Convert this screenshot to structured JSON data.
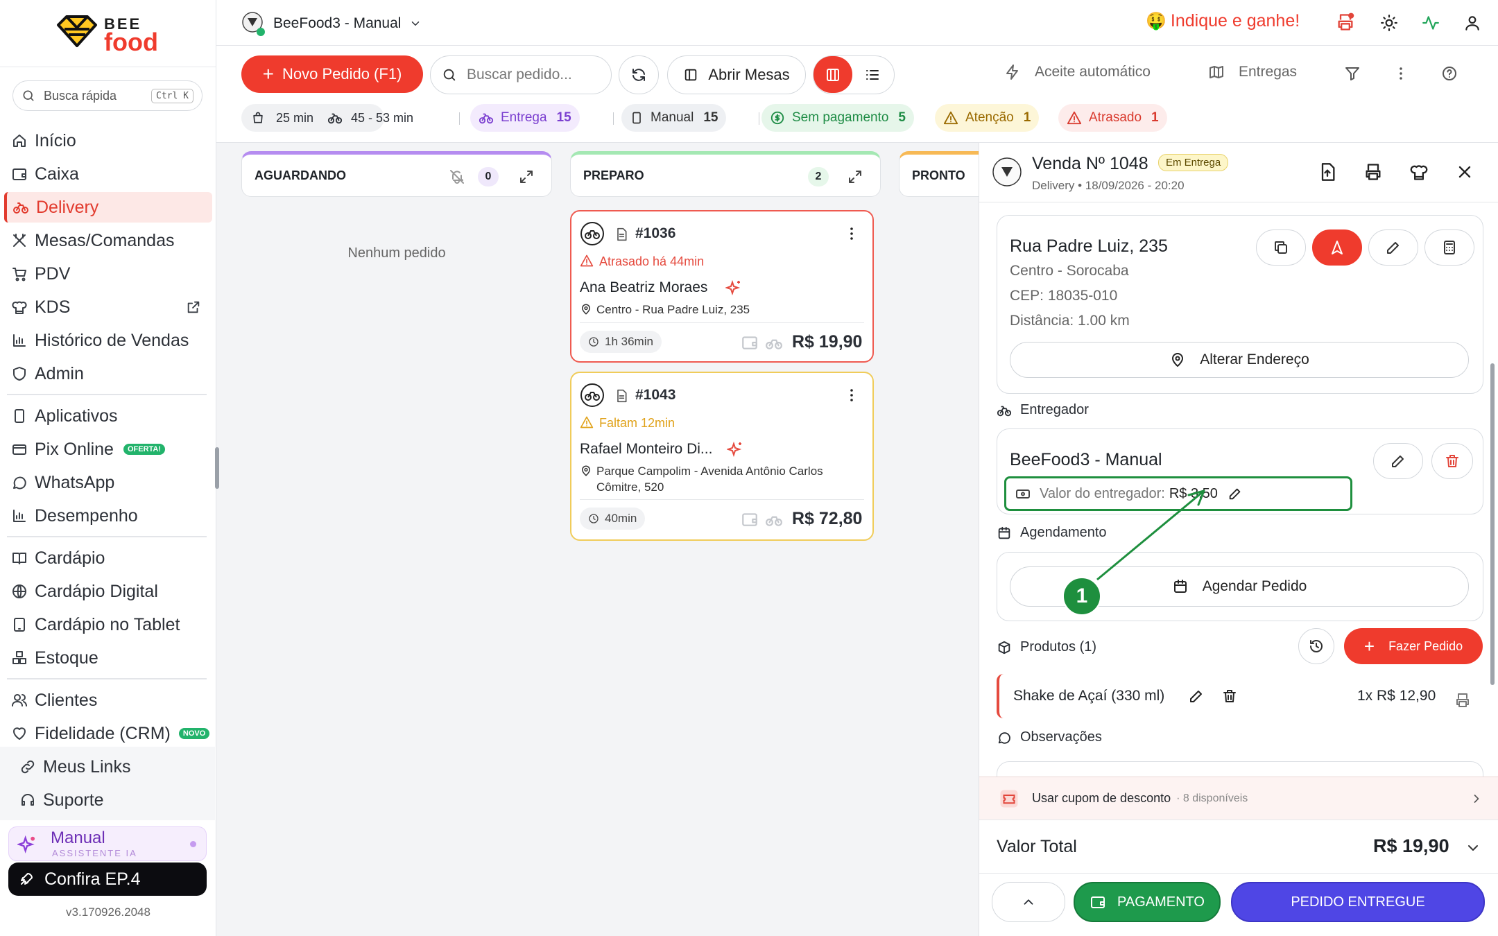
{
  "sidebar": {
    "logo_top": "BEE",
    "logo_bottom": "food",
    "search_placeholder": "Busca rápida",
    "search_shortcut": "Ctrl K",
    "items": [
      {
        "label": "Início",
        "icon": "home-icon"
      },
      {
        "label": "Caixa",
        "icon": "wallet-icon"
      },
      {
        "label": "Delivery",
        "icon": "bike-icon"
      },
      {
        "label": "Mesas/Comandas",
        "icon": "utensils-icon"
      },
      {
        "label": "PDV",
        "icon": "cart-icon"
      },
      {
        "label": "KDS",
        "icon": "chef-hat-icon"
      },
      {
        "label": "Histórico de Vendas",
        "icon": "bar-chart-icon"
      },
      {
        "label": "Admin",
        "icon": "shield-icon"
      },
      {
        "label": "Aplicativos",
        "icon": "phone-icon"
      },
      {
        "label": "Pix Online",
        "icon": "card-icon",
        "badge": "OFERTA!"
      },
      {
        "label": "WhatsApp",
        "icon": "chat-icon"
      },
      {
        "label": "Desempenho",
        "icon": "bar-chart-icon"
      },
      {
        "label": "Cardápio",
        "icon": "book-icon"
      },
      {
        "label": "Cardápio Digital",
        "icon": "globe-icon"
      },
      {
        "label": "Cardápio no Tablet",
        "icon": "tablet-icon"
      },
      {
        "label": "Estoque",
        "icon": "boxes-icon"
      },
      {
        "label": "Clientes",
        "icon": "users-icon"
      },
      {
        "label": "Fidelidade (CRM)",
        "icon": "heart-icon",
        "badge": "NOVO"
      },
      {
        "label": "Meus Links",
        "icon": "link-icon"
      },
      {
        "label": "Suporte",
        "icon": "headset-icon"
      }
    ],
    "assistant_title": "Manual",
    "assistant_subtitle": "ASSISTENTE IA",
    "promo_label": "Confira EP.4",
    "version": "v3.170926.2048"
  },
  "header": {
    "store_name": "BeeFood3 - Manual",
    "referral": "Indique e ganhe!",
    "referral_emoji": "🤑"
  },
  "toolbar": {
    "new_order": "Novo Pedido (F1)",
    "search_placeholder": "Buscar pedido...",
    "open_tables": "Abrir Mesas",
    "auto_accept": "Aceite automático",
    "deliveries": "Entregas",
    "time_prep": "25 min",
    "time_delivery": "45 - 53 min",
    "filters": [
      {
        "label": "Entrega",
        "count": "15"
      },
      {
        "label": "Manual",
        "count": "15"
      },
      {
        "label": "Sem pagamento",
        "count": "5"
      },
      {
        "label": "Atenção",
        "count": "1"
      },
      {
        "label": "Atrasado",
        "count": "1"
      }
    ]
  },
  "board": {
    "columns": [
      {
        "title": "AGUARDANDO",
        "count": "0"
      },
      {
        "title": "PREPARO",
        "count": "2"
      },
      {
        "title": "PRONTO"
      }
    ],
    "empty_text": "Nenhum pedido",
    "orders": [
      {
        "number": "#1036",
        "status": "Atrasado há 44min",
        "customer": "Ana Beatriz Moraes",
        "address": "Centro - Rua Padre Luiz, 235",
        "elapsed": "1h 36min",
        "total": "R$ 19,90",
        "status_color": "#e54a3e"
      },
      {
        "number": "#1043",
        "status": "Faltam 12min",
        "customer": "Rafael Monteiro Di...",
        "address_line1": "Parque Campolim - Avenida Antônio Carlos",
        "address_line2": "Cômitre, 520",
        "elapsed": "40min",
        "total": "R$ 72,80",
        "status_color": "#e0a21a"
      }
    ]
  },
  "panel": {
    "title": "Venda Nº 1048",
    "status_badge": "Em Entrega",
    "subtitle": "Delivery • 18/09/2026 - 20:20",
    "address": {
      "street": "Rua Padre Luiz, 235",
      "district": "Centro - Sorocaba",
      "cep": "CEP: 18035-010",
      "distance": "Distância: 1.00 km",
      "change_button": "Alterar Endereço"
    },
    "courier_section": "Entregador",
    "courier_name": "BeeFood3 - Manual",
    "courier_fee_label": "Valor do entregador:",
    "courier_fee_value": "R$ 3,50",
    "schedule_section": "Agendamento",
    "schedule_button": "Agendar Pedido",
    "products_section": "Produtos (1)",
    "order_button": "Fazer Pedido",
    "product": {
      "name": "Shake de Açaí (330 ml)",
      "qty_price": "1x R$ 12,90"
    },
    "notes_section": "Observações",
    "coupon_label": "Usar cupom de desconto",
    "coupon_available": "· 8 disponíveis",
    "total_label": "Valor Total",
    "total_value": "R$ 19,90",
    "pay_button": "PAGAMENTO",
    "delivered_button": "PEDIDO ENTREGUE"
  },
  "annotation": {
    "step": "1"
  },
  "colors": {
    "brand_red": "#ef3b2d",
    "purple": "#4f46e5",
    "green": "#1e9a4c",
    "annotation_green": "#1e8f3e"
  }
}
